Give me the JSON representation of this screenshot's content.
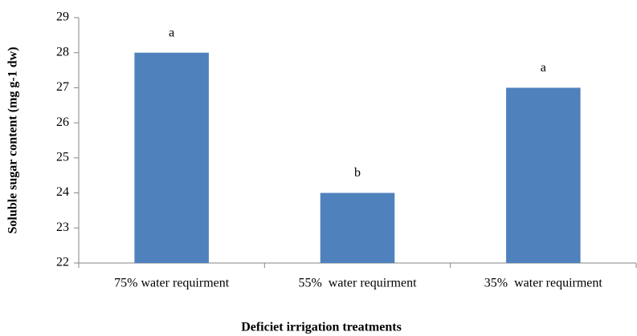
{
  "chart_data": {
    "type": "bar",
    "categories": [
      "75% water requirment",
      "55%  water requirment",
      "35%  water requirment"
    ],
    "values": [
      28,
      24,
      27
    ],
    "annotations": [
      "a",
      "b",
      "a"
    ],
    "color": "#4f81bd",
    "xlabel": "Deficiet irrigation treatments",
    "ylabel": "Soluble sugar content (mg g-1 dw)",
    "ylim": [
      22,
      29
    ],
    "yticks": [
      22,
      23,
      24,
      25,
      26,
      27,
      28,
      29
    ],
    "grid": false
  }
}
